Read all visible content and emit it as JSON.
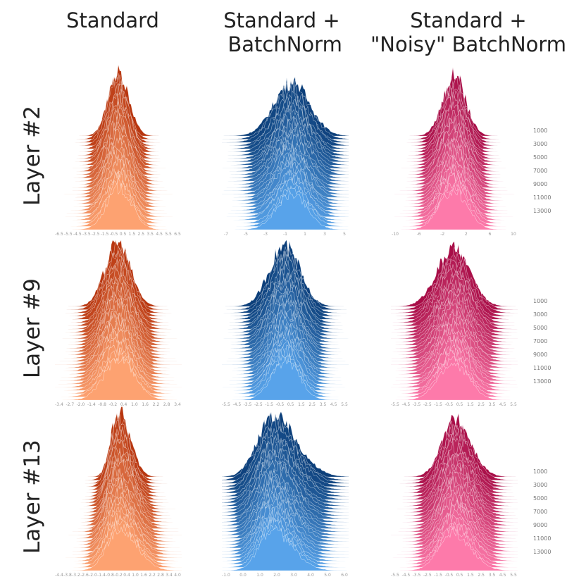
{
  "chart_data": {
    "type": "ridgeline-histogram-grid",
    "column_titles": [
      "Standard",
      "Standard +\n BatchNorm",
      "Standard +\n\"Noisy\" BatchNorm"
    ],
    "row_titles": [
      "Layer #2",
      "Layer #9",
      "Layer #13"
    ],
    "step_labels": [
      "1000",
      "3000",
      "5000",
      "7000",
      "9000",
      "11000",
      "13000"
    ],
    "n_ridges": 30,
    "colors": {
      "Standard": {
        "top": "#b8360f",
        "bottom": "#fda271"
      },
      "Standard + BatchNorm": {
        "top": "#0c3f7a",
        "bottom": "#58a3ea"
      },
      "Standard + \"Noisy\" BatchNorm": {
        "top": "#a80d47",
        "bottom": "#fd7aaa"
      }
    },
    "panels": [
      {
        "row": "Layer #2",
        "column": "Standard",
        "x_ticks": [
          "-6.5",
          "-5.5",
          "-4.5",
          "-3.5",
          "-2.5",
          "-1.5",
          "-0.5",
          "0.5",
          "1.5",
          "2.5",
          "3.5",
          "4.5",
          "5.5",
          "6.5"
        ],
        "center": 0.0,
        "width_start": 0.08,
        "width_end": 0.1,
        "height_top": 1.0,
        "skew": 0.0,
        "show_steps": false
      },
      {
        "row": "Layer #2",
        "column": "Standard + BatchNorm",
        "x_ticks": [
          "-7",
          "-5",
          "-3",
          "-1",
          "1",
          "3",
          "5"
        ],
        "center": 0.05,
        "width_start": 0.14,
        "width_end": 0.12,
        "height_top": 0.85,
        "skew": 0.0,
        "show_steps": false
      },
      {
        "row": "Layer #2",
        "column": "Standard + \"Noisy\" BatchNorm",
        "x_ticks": [
          "-10",
          "-6",
          "-2",
          "2",
          "6",
          "10"
        ],
        "center": 0.0,
        "width_start": 0.09,
        "width_end": 0.11,
        "height_top": 0.95,
        "skew": 0.0,
        "show_steps": true
      },
      {
        "row": "Layer #9",
        "column": "Standard",
        "x_ticks": [
          "-3.4",
          "-2.7",
          "-2.0",
          "-1.4",
          "-0.8",
          "-0.2",
          "0.4",
          "1.0",
          "1.6",
          "2.2",
          "2.8",
          "3.4"
        ],
        "center": 0.0,
        "width_start": 0.1,
        "width_end": 0.12,
        "height_top": 1.0,
        "skew": 0.0,
        "show_steps": false
      },
      {
        "row": "Layer #9",
        "column": "Standard + BatchNorm",
        "x_ticks": [
          "-5.5",
          "-4.5",
          "-3.5",
          "-2.5",
          "-1.5",
          "-0.5",
          "0.5",
          "1.5",
          "2.5",
          "3.5",
          "4.5",
          "5.5"
        ],
        "center": 0.0,
        "width_start": 0.12,
        "width_end": 0.11,
        "height_top": 0.95,
        "skew": 0.0,
        "show_steps": false
      },
      {
        "row": "Layer #9",
        "column": "Standard + \"Noisy\" BatchNorm",
        "x_ticks": [
          "-5.5",
          "-4.5",
          "-3.5",
          "-2.5",
          "-1.5",
          "-0.5",
          "0.5",
          "1.5",
          "2.5",
          "3.5",
          "4.5",
          "5.5"
        ],
        "center": 0.0,
        "width_start": 0.13,
        "width_end": 0.12,
        "height_top": 0.9,
        "skew": 0.0,
        "show_steps": true
      },
      {
        "row": "Layer #13",
        "column": "Standard",
        "x_ticks": [
          "-4.4",
          "-3.8",
          "-3.2",
          "-2.6",
          "-2.0",
          "-1.4",
          "-0.8",
          "-0.2",
          "0.4",
          "1.0",
          "1.6",
          "2.2",
          "2.8",
          "3.4",
          "4.0"
        ],
        "center": 0.0,
        "width_start": 0.07,
        "width_end": 0.11,
        "height_top": 1.0,
        "skew": 0.25,
        "show_steps": false
      },
      {
        "row": "Layer #13",
        "column": "Standard + BatchNorm",
        "x_ticks": [
          "-1.0",
          "0.0",
          "1.0",
          "2.0",
          "3.0",
          "4.0",
          "5.0",
          "6.0"
        ],
        "center": -0.1,
        "width_start": 0.14,
        "width_end": 0.12,
        "height_top": 0.95,
        "skew": 0.3,
        "show_steps": false
      },
      {
        "row": "Layer #13",
        "column": "Standard + \"Noisy\" BatchNorm",
        "x_ticks": [
          "-5.5",
          "-4.5",
          "-3.5",
          "-2.5",
          "-1.5",
          "-0.5",
          "0.5",
          "1.5",
          "2.5",
          "3.5",
          "4.5",
          "5.5"
        ],
        "center": 0.0,
        "width_start": 0.11,
        "width_end": 0.12,
        "height_top": 0.9,
        "skew": 0.15,
        "show_steps": true
      }
    ]
  }
}
